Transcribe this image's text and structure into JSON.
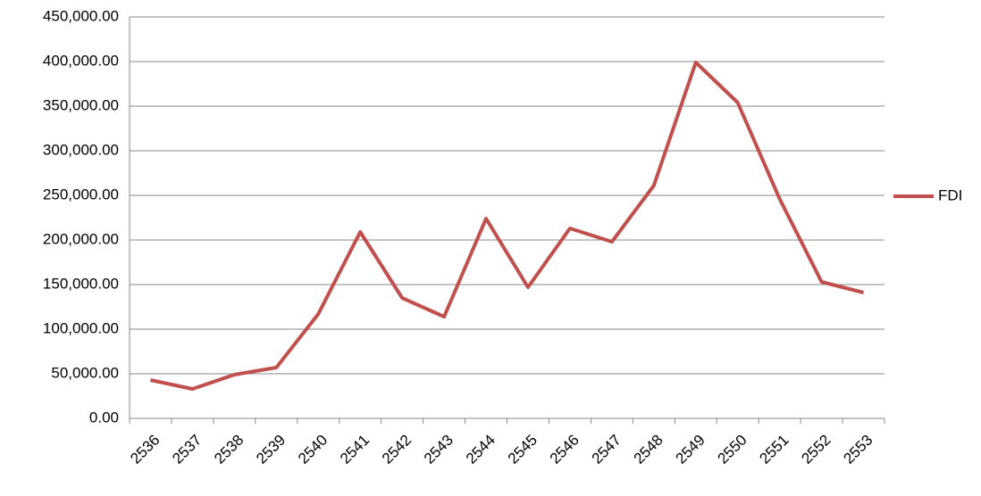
{
  "chart_data": {
    "type": "line",
    "categories": [
      "2536",
      "2537",
      "2538",
      "2539",
      "2540",
      "2541",
      "2542",
      "2543",
      "2544",
      "2545",
      "2546",
      "2547",
      "2548",
      "2549",
      "2550",
      "2551",
      "2552",
      "2553"
    ],
    "series": [
      {
        "name": "FDI",
        "color": "#c0504d",
        "values": [
          43000,
          33000,
          49000,
          57000,
          117000,
          209000,
          135000,
          114000,
          224000,
          147000,
          213000,
          198000,
          261000,
          399000,
          354000,
          246000,
          153000,
          141000
        ]
      }
    ],
    "ylim": [
      0,
      450000
    ],
    "yticks": [
      {
        "value": 0,
        "label": "0.00"
      },
      {
        "value": 50000,
        "label": "50,000.00"
      },
      {
        "value": 100000,
        "label": "100,000.00"
      },
      {
        "value": 150000,
        "label": "150,000.00"
      },
      {
        "value": 200000,
        "label": "200,000.00"
      },
      {
        "value": 250000,
        "label": "250,000.00"
      },
      {
        "value": 300000,
        "label": "300,000.00"
      },
      {
        "value": 350000,
        "label": "350,000.00"
      },
      {
        "value": 400000,
        "label": "400,000.00"
      },
      {
        "value": 450000,
        "label": "450,000.00"
      }
    ],
    "grid": true,
    "legend": "right"
  }
}
